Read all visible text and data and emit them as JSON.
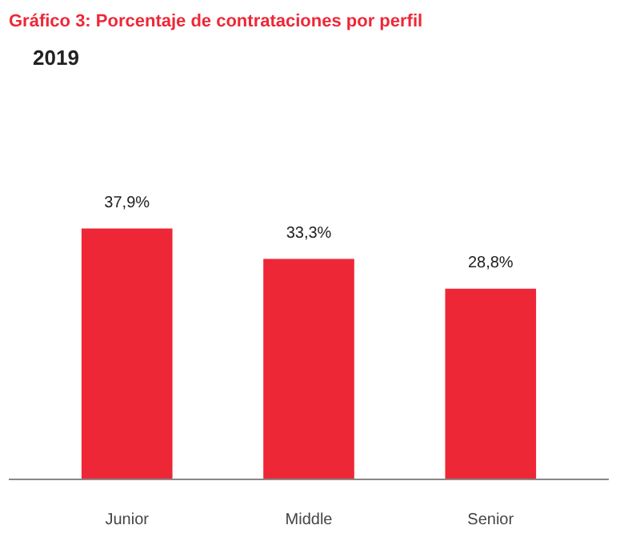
{
  "chart_data": {
    "type": "bar",
    "title": "Gráfico 3: Porcentaje de contrataciones por perfil",
    "subtitle": "2019",
    "categories": [
      "Junior",
      "Middle",
      "Senior"
    ],
    "values": [
      37.9,
      33.3,
      28.8
    ],
    "value_labels": [
      "37,9%",
      "33,3%",
      "28,8%"
    ],
    "color": "#ee2737",
    "grid": false
  }
}
